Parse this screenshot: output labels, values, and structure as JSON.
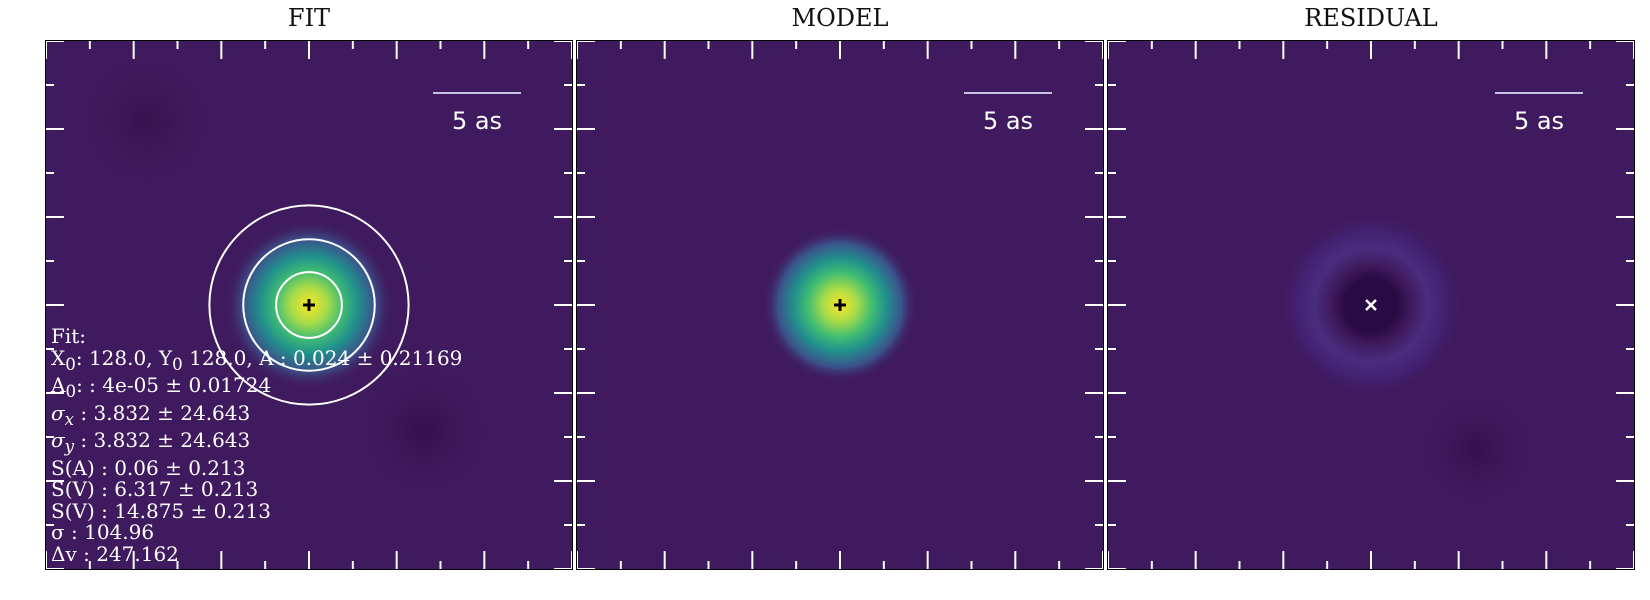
{
  "panels": {
    "fit": {
      "title": "FIT",
      "scale_bar": "5 as"
    },
    "model": {
      "title": "MODEL",
      "scale_bar": "5 as"
    },
    "residual": {
      "title": "RESIDUAL",
      "scale_bar": "5 as"
    }
  },
  "fit_info": {
    "header": "Fit:",
    "line_center_prefix_x": "X",
    "line_center_sub_x": "0",
    "line_center_mid": ": 128.0, Y",
    "line_center_sub_y": "0",
    "line_center_rest": " 128.0, A : 0.024 ± 0.21169",
    "line_a0_prefix": "A",
    "line_a0_sub": "0",
    "line_a0_rest": ": : 4e-05 ± 0.01724",
    "line_sx_sym": "σ",
    "line_sx_sub": "x",
    "line_sx_rest": " : 3.832 ± 24.643",
    "line_sy_sym": "σ",
    "line_sy_sub": "y",
    "line_sy_rest": " : 3.832 ± 24.643",
    "line_sa": "S(A) : 0.06 ± 0.213",
    "line_sv1": "S(V) : 6.317 ± 0.213",
    "line_sv2": "S(V) : 14.875 ± 0.213",
    "line_sigma": "σ : 104.96",
    "line_dv": "Δv : 247.162"
  },
  "colormap": "viridis",
  "colors": {
    "background": "#3f1a5e",
    "peak": "#fde725",
    "contour": "#ffffff"
  },
  "markers": {
    "fit": "plus",
    "model": "plus",
    "residual": "x"
  }
}
